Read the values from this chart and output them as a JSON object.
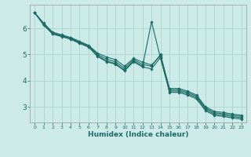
{
  "title": "",
  "xlabel": "Humidex (Indice chaleur)",
  "bg_color": "#cceae8",
  "grid_color": "#aad4d0",
  "line_color": "#1a6b64",
  "xlim": [
    -0.5,
    23.5
  ],
  "ylim": [
    2.4,
    6.9
  ],
  "yticks": [
    3,
    4,
    5,
    6
  ],
  "xticks": [
    0,
    1,
    2,
    3,
    4,
    5,
    6,
    7,
    8,
    9,
    10,
    11,
    12,
    13,
    14,
    15,
    16,
    17,
    18,
    19,
    20,
    21,
    22,
    23
  ],
  "series": [
    [
      6.6,
      6.2,
      5.85,
      5.75,
      5.65,
      5.5,
      5.35,
      5.05,
      4.9,
      4.8,
      4.55,
      4.85,
      4.7,
      4.6,
      4.95,
      3.7,
      3.7,
      3.6,
      3.45,
      3.0,
      2.82,
      2.78,
      2.72,
      2.68
    ],
    [
      6.6,
      6.15,
      5.8,
      5.7,
      5.6,
      5.45,
      5.3,
      4.95,
      4.75,
      4.65,
      4.4,
      4.75,
      4.55,
      6.25,
      4.85,
      3.6,
      3.6,
      3.5,
      3.35,
      2.9,
      2.72,
      2.68,
      2.62,
      2.58
    ],
    [
      6.6,
      6.15,
      5.82,
      5.72,
      5.62,
      5.47,
      5.32,
      5.0,
      4.82,
      4.72,
      4.47,
      4.8,
      4.62,
      4.55,
      5.0,
      3.65,
      3.65,
      3.55,
      3.4,
      2.95,
      2.77,
      2.73,
      2.67,
      2.63
    ],
    [
      6.6,
      6.12,
      5.78,
      5.68,
      5.58,
      5.42,
      5.28,
      4.92,
      4.72,
      4.62,
      4.37,
      4.72,
      4.52,
      4.45,
      4.88,
      3.55,
      3.55,
      3.45,
      3.3,
      2.85,
      2.67,
      2.63,
      2.57,
      2.53
    ]
  ]
}
